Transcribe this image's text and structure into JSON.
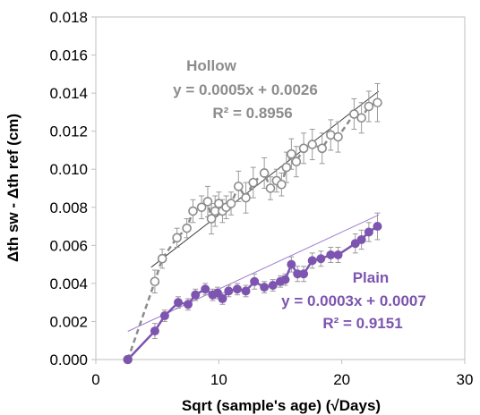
{
  "chart_data": {
    "type": "scatter",
    "title": "",
    "xlabel": "Sqrt (sample's age) (√Days)",
    "ylabel": "Δth sw - Δth ref (cm)",
    "xlim": [
      0,
      30
    ],
    "ylim": [
      0,
      0.018
    ],
    "grid": false,
    "x_ticks": [
      "0",
      "10",
      "20",
      "30"
    ],
    "y_ticks": [
      "0.000",
      "0.002",
      "0.004",
      "0.006",
      "0.008",
      "0.010",
      "0.012",
      "0.014",
      "0.016",
      "0.018"
    ],
    "series": [
      {
        "name": "Hollow",
        "color": "#8c8c8c",
        "marker": "open-circle",
        "line_style": "dashed",
        "points": [
          [
            2.6,
            0.0
          ],
          [
            4.8,
            0.0041
          ],
          [
            5.4,
            0.0053
          ],
          [
            6.6,
            0.0064
          ],
          [
            7.4,
            0.0069
          ],
          [
            7.9,
            0.0078
          ],
          [
            8.6,
            0.008
          ],
          [
            9.1,
            0.0083
          ],
          [
            9.4,
            0.0074
          ],
          [
            9.7,
            0.0078
          ],
          [
            10.0,
            0.0082
          ],
          [
            10.3,
            0.0078
          ],
          [
            10.6,
            0.008
          ],
          [
            11.0,
            0.0082
          ],
          [
            11.6,
            0.0091
          ],
          [
            12.2,
            0.0085
          ],
          [
            12.8,
            0.0093
          ],
          [
            13.7,
            0.0098
          ],
          [
            14.2,
            0.009
          ],
          [
            14.7,
            0.0094
          ],
          [
            15.1,
            0.0092
          ],
          [
            15.5,
            0.0101
          ],
          [
            15.9,
            0.0108
          ],
          [
            16.3,
            0.0104
          ],
          [
            16.9,
            0.0111
          ],
          [
            17.6,
            0.0113
          ],
          [
            18.4,
            0.0111
          ],
          [
            19.1,
            0.0118
          ],
          [
            19.7,
            0.0117
          ],
          [
            21.0,
            0.0129
          ],
          [
            21.6,
            0.0127
          ],
          [
            22.2,
            0.0133
          ],
          [
            22.9,
            0.0135
          ]
        ],
        "error": [
          0.0,
          0.0006,
          0.0005,
          0.0005,
          0.0005,
          0.0006,
          0.0006,
          0.0008,
          0.0008,
          0.0008,
          0.0006,
          0.0006,
          0.0006,
          0.0006,
          0.0008,
          0.0008,
          0.0008,
          0.0008,
          0.0006,
          0.0006,
          0.0006,
          0.0008,
          0.0008,
          0.0008,
          0.0008,
          0.0008,
          0.0008,
          0.0008,
          0.0008,
          0.0008,
          0.0008,
          0.0008,
          0.001
        ],
        "trendline": {
          "equation": "y = 0.0005x + 0.0026",
          "r2": "R² = 0.8956",
          "slope": 0.0005,
          "intercept": 0.0026,
          "x_range": [
            4.5,
            23
          ]
        }
      },
      {
        "name": "Plain",
        "color": "#7d55b0",
        "marker": "filled-circle",
        "line_style": "solid",
        "points": [
          [
            2.6,
            0.0
          ],
          [
            4.8,
            0.0015
          ],
          [
            5.6,
            0.0023
          ],
          [
            6.7,
            0.003
          ],
          [
            7.5,
            0.0029
          ],
          [
            8.1,
            0.0034
          ],
          [
            8.9,
            0.0037
          ],
          [
            9.5,
            0.0034
          ],
          [
            9.9,
            0.0035
          ],
          [
            10.3,
            0.0032
          ],
          [
            10.8,
            0.0036
          ],
          [
            11.5,
            0.0037
          ],
          [
            12.2,
            0.0036
          ],
          [
            12.9,
            0.0041
          ],
          [
            13.7,
            0.0038
          ],
          [
            14.4,
            0.0039
          ],
          [
            15.0,
            0.0041
          ],
          [
            15.4,
            0.0042
          ],
          [
            15.9,
            0.005
          ],
          [
            16.4,
            0.0045
          ],
          [
            16.9,
            0.0045
          ],
          [
            17.6,
            0.0052
          ],
          [
            18.3,
            0.0053
          ],
          [
            19.1,
            0.0055
          ],
          [
            19.7,
            0.0055
          ],
          [
            21.1,
            0.0061
          ],
          [
            21.6,
            0.0063
          ],
          [
            22.2,
            0.0067
          ],
          [
            22.9,
            0.007
          ]
        ],
        "error": [
          0.0,
          0.0004,
          0.0003,
          0.0003,
          0.0003,
          0.0003,
          0.0003,
          0.0003,
          0.0003,
          0.0003,
          0.0003,
          0.0003,
          0.0003,
          0.0004,
          0.0003,
          0.0003,
          0.0003,
          0.0003,
          0.0004,
          0.0004,
          0.0004,
          0.0004,
          0.0004,
          0.0004,
          0.0004,
          0.0005,
          0.0005,
          0.0005,
          0.0007
        ],
        "trendline": {
          "equation": "y = 0.0003x + 0.0007",
          "r2": "R² = 0.9151",
          "slope": 0.0003,
          "intercept": 0.0007,
          "x_range": [
            2.6,
            23
          ]
        }
      }
    ]
  }
}
